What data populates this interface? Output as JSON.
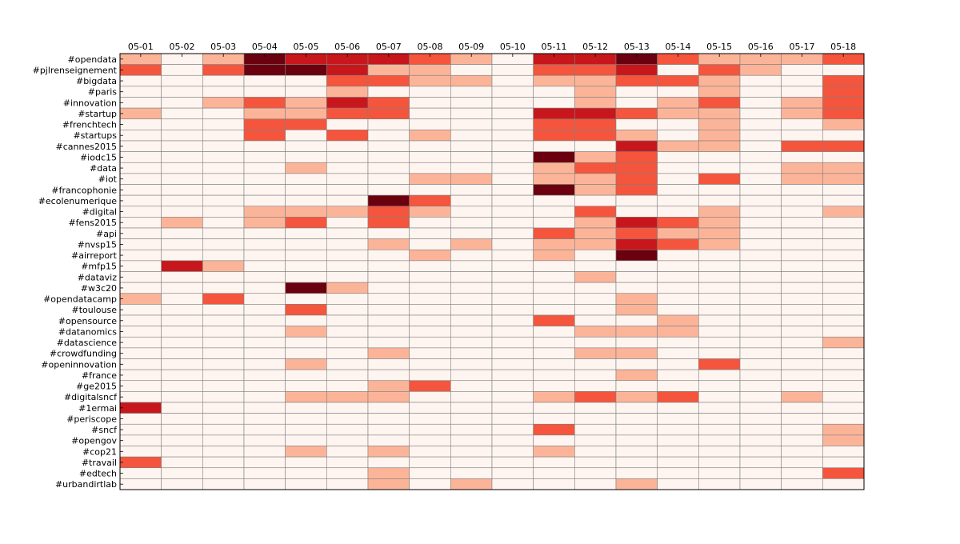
{
  "chart_data": {
    "type": "heatmap",
    "title": "",
    "xlabel": "",
    "ylabel": "",
    "x_tick_position": "top",
    "grid": true,
    "legend": "none",
    "colormap": "Reds",
    "value_range": [
      0,
      4
    ],
    "x": [
      "05-01",
      "05-02",
      "05-03",
      "05-04",
      "05-05",
      "05-06",
      "05-07",
      "05-08",
      "05-09",
      "05-10",
      "05-11",
      "05-12",
      "05-13",
      "05-14",
      "05-15",
      "05-16",
      "05-17",
      "05-18"
    ],
    "y": [
      "#opendata",
      "#pjlrenseignement",
      "#bigdata",
      "#paris",
      "#innovation",
      "#startup",
      "#frenchtech",
      "#startups",
      "#cannes2015",
      "#iodc15",
      "#data",
      "#iot",
      "#francophonie",
      "#ecolenumerique",
      "#digital",
      "#fens2015",
      "#api",
      "#nvsp15",
      "#airreport",
      "#mfp15",
      "#dataviz",
      "#w3c20",
      "#opendatacamp",
      "#toulouse",
      "#opensource",
      "#datanomics",
      "#datascience",
      "#crowdfunding",
      "#openinnovation",
      "#france",
      "#ge2015",
      "#digitalsncf",
      "#1ermai",
      "#periscope",
      "#sncf",
      "#opengov",
      "#cop21",
      "#travail",
      "#edtech",
      "#urbandirtlab"
    ],
    "values": [
      [
        1,
        0,
        1,
        4,
        3,
        3,
        3,
        2,
        1,
        0,
        3,
        3,
        4,
        2,
        1,
        1,
        1,
        2
      ],
      [
        2,
        0,
        2,
        4,
        4,
        3,
        1,
        1,
        0,
        0,
        2,
        2,
        3,
        0,
        2,
        1,
        0,
        0
      ],
      [
        0,
        0,
        0,
        0,
        0,
        2,
        2,
        1,
        1,
        0,
        1,
        1,
        2,
        2,
        1,
        0,
        0,
        2
      ],
      [
        0,
        0,
        0,
        0,
        0,
        1,
        0,
        0,
        0,
        0,
        0,
        1,
        0,
        0,
        1,
        0,
        0,
        2
      ],
      [
        0,
        0,
        1,
        2,
        1,
        3,
        2,
        0,
        0,
        0,
        0,
        1,
        0,
        1,
        2,
        0,
        1,
        2
      ],
      [
        1,
        0,
        0,
        1,
        1,
        2,
        2,
        0,
        0,
        0,
        3,
        3,
        2,
        1,
        1,
        0,
        1,
        2
      ],
      [
        0,
        0,
        0,
        2,
        2,
        0,
        0,
        0,
        0,
        0,
        2,
        2,
        0,
        0,
        1,
        0,
        0,
        1
      ],
      [
        0,
        0,
        0,
        2,
        0,
        2,
        0,
        1,
        0,
        0,
        2,
        2,
        1,
        0,
        1,
        0,
        0,
        0
      ],
      [
        0,
        0,
        0,
        0,
        0,
        0,
        0,
        0,
        0,
        0,
        0,
        0,
        3,
        1,
        1,
        0,
        2,
        2
      ],
      [
        0,
        0,
        0,
        0,
        0,
        0,
        0,
        0,
        0,
        0,
        4,
        1,
        2,
        0,
        0,
        0,
        0,
        0
      ],
      [
        0,
        0,
        0,
        0,
        1,
        0,
        0,
        0,
        0,
        0,
        1,
        2,
        2,
        0,
        0,
        0,
        1,
        1
      ],
      [
        0,
        0,
        0,
        0,
        0,
        0,
        0,
        1,
        1,
        0,
        1,
        1,
        2,
        0,
        2,
        0,
        1,
        1
      ],
      [
        0,
        0,
        0,
        0,
        0,
        0,
        0,
        0,
        0,
        0,
        4,
        1,
        2,
        0,
        0,
        0,
        0,
        0
      ],
      [
        0,
        0,
        0,
        0,
        0,
        0,
        4,
        2,
        0,
        0,
        0,
        0,
        0,
        0,
        0,
        0,
        0,
        0
      ],
      [
        0,
        0,
        0,
        1,
        1,
        1,
        2,
        1,
        0,
        0,
        0,
        2,
        0,
        0,
        1,
        0,
        0,
        1
      ],
      [
        0,
        1,
        0,
        1,
        2,
        0,
        2,
        0,
        0,
        0,
        0,
        1,
        3,
        2,
        1,
        0,
        0,
        0
      ],
      [
        0,
        0,
        0,
        0,
        0,
        0,
        0,
        0,
        0,
        0,
        2,
        1,
        2,
        1,
        1,
        0,
        0,
        0
      ],
      [
        0,
        0,
        0,
        0,
        0,
        0,
        1,
        0,
        1,
        0,
        1,
        1,
        3,
        2,
        1,
        0,
        0,
        0
      ],
      [
        0,
        0,
        0,
        0,
        0,
        0,
        0,
        1,
        0,
        0,
        1,
        0,
        4,
        0,
        0,
        0,
        0,
        0
      ],
      [
        0,
        3,
        1,
        0,
        0,
        0,
        0,
        0,
        0,
        0,
        0,
        0,
        0,
        0,
        0,
        0,
        0,
        0
      ],
      [
        0,
        0,
        0,
        0,
        0,
        0,
        0,
        0,
        0,
        0,
        0,
        1,
        0,
        0,
        0,
        0,
        0,
        0
      ],
      [
        0,
        0,
        0,
        0,
        4,
        1,
        0,
        0,
        0,
        0,
        0,
        0,
        0,
        0,
        0,
        0,
        0,
        0
      ],
      [
        1,
        0,
        2,
        0,
        0,
        0,
        0,
        0,
        0,
        0,
        0,
        0,
        1,
        0,
        0,
        0,
        0,
        0
      ],
      [
        0,
        0,
        0,
        0,
        2,
        0,
        0,
        0,
        0,
        0,
        0,
        0,
        1,
        0,
        0,
        0,
        0,
        0
      ],
      [
        0,
        0,
        0,
        0,
        0,
        0,
        0,
        0,
        0,
        0,
        2,
        0,
        0,
        1,
        0,
        0,
        0,
        0
      ],
      [
        0,
        0,
        0,
        0,
        1,
        0,
        0,
        0,
        0,
        0,
        0,
        1,
        1,
        1,
        0,
        0,
        0,
        0
      ],
      [
        0,
        0,
        0,
        0,
        0,
        0,
        0,
        0,
        0,
        0,
        0,
        0,
        0,
        0,
        0,
        0,
        0,
        1
      ],
      [
        0,
        0,
        0,
        0,
        0,
        0,
        1,
        0,
        0,
        0,
        0,
        1,
        1,
        0,
        0,
        0,
        0,
        0
      ],
      [
        0,
        0,
        0,
        0,
        1,
        0,
        0,
        0,
        0,
        0,
        0,
        0,
        0,
        0,
        2,
        0,
        0,
        0
      ],
      [
        0,
        0,
        0,
        0,
        0,
        0,
        0,
        0,
        0,
        0,
        0,
        0,
        1,
        0,
        0,
        0,
        0,
        0
      ],
      [
        0,
        0,
        0,
        0,
        0,
        0,
        1,
        2,
        0,
        0,
        0,
        0,
        0,
        0,
        0,
        0,
        0,
        0
      ],
      [
        0,
        0,
        0,
        0,
        1,
        1,
        1,
        0,
        0,
        0,
        1,
        2,
        1,
        2,
        0,
        0,
        1,
        0
      ],
      [
        3,
        0,
        0,
        0,
        0,
        0,
        0,
        0,
        0,
        0,
        0,
        0,
        0,
        0,
        0,
        0,
        0,
        0
      ],
      [
        0,
        0,
        0,
        0,
        0,
        0,
        0,
        0,
        0,
        0,
        0,
        0,
        0,
        0,
        0,
        0,
        0,
        0
      ],
      [
        0,
        0,
        0,
        0,
        0,
        0,
        0,
        0,
        0,
        0,
        2,
        0,
        0,
        0,
        0,
        0,
        0,
        1
      ],
      [
        0,
        0,
        0,
        0,
        0,
        0,
        0,
        0,
        0,
        0,
        0,
        0,
        0,
        0,
        0,
        0,
        0,
        1
      ],
      [
        0,
        0,
        0,
        0,
        1,
        0,
        1,
        0,
        0,
        0,
        1,
        0,
        0,
        0,
        0,
        0,
        0,
        0
      ],
      [
        2,
        0,
        0,
        0,
        0,
        0,
        0,
        0,
        0,
        0,
        0,
        0,
        0,
        0,
        0,
        0,
        0,
        0
      ],
      [
        0,
        0,
        0,
        0,
        0,
        0,
        1,
        0,
        0,
        0,
        0,
        0,
        0,
        0,
        0,
        0,
        0,
        2
      ],
      [
        0,
        0,
        0,
        0,
        0,
        0,
        1,
        0,
        1,
        0,
        0,
        0,
        1,
        0,
        0,
        0,
        0,
        0
      ]
    ]
  }
}
